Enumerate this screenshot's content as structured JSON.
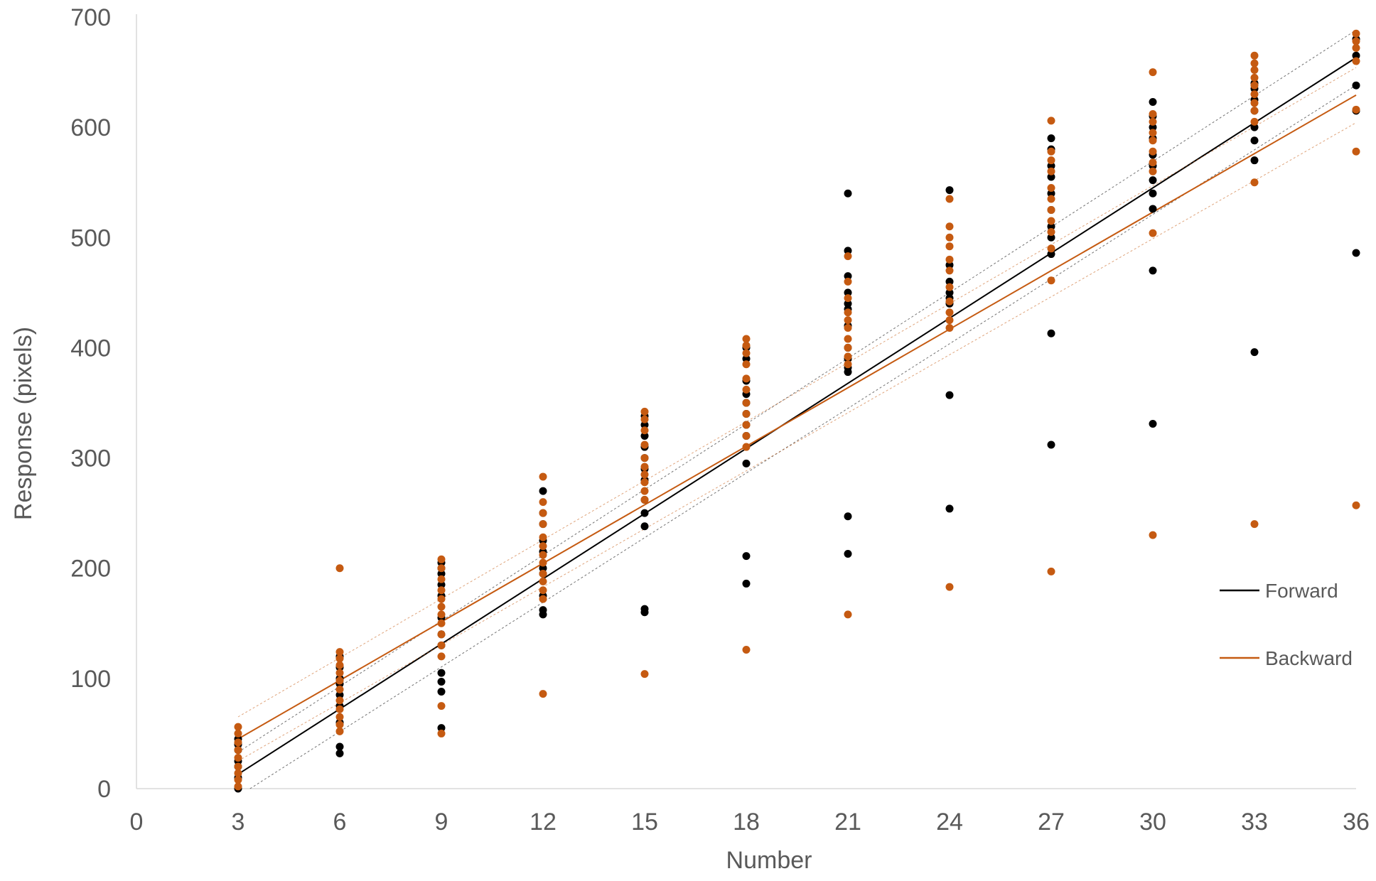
{
  "chart_data": {
    "type": "scatter",
    "title": "",
    "xlabel": "Number",
    "ylabel": "Response (pixels)",
    "xlim": [
      0,
      36
    ],
    "ylim": [
      0,
      700
    ],
    "x_ticks": [
      0,
      3,
      6,
      9,
      12,
      15,
      18,
      21,
      24,
      27,
      30,
      33,
      36
    ],
    "y_ticks": [
      0,
      100,
      200,
      300,
      400,
      500,
      600,
      700
    ],
    "grid": false,
    "legend_position": "right",
    "series": [
      {
        "name": "Forward",
        "color": "#000000",
        "trendline": {
          "slope": 19.7,
          "intercept": -46,
          "ci_band": 20
        },
        "points": [
          [
            3,
            0
          ],
          [
            3,
            10
          ],
          [
            3,
            20
          ],
          [
            3,
            25
          ],
          [
            3,
            35
          ],
          [
            3,
            40
          ],
          [
            3,
            45
          ],
          [
            6,
            32
          ],
          [
            6,
            38
          ],
          [
            6,
            60
          ],
          [
            6,
            75
          ],
          [
            6,
            85
          ],
          [
            6,
            95
          ],
          [
            6,
            100
          ],
          [
            6,
            110
          ],
          [
            6,
            120
          ],
          [
            9,
            55
          ],
          [
            9,
            88
          ],
          [
            9,
            97
          ],
          [
            9,
            105
          ],
          [
            9,
            130
          ],
          [
            9,
            140
          ],
          [
            9,
            155
          ],
          [
            9,
            175
          ],
          [
            9,
            185
          ],
          [
            9,
            195
          ],
          [
            9,
            200
          ],
          [
            9,
            205
          ],
          [
            12,
            158
          ],
          [
            12,
            162
          ],
          [
            12,
            175
          ],
          [
            12,
            195
          ],
          [
            12,
            200
          ],
          [
            12,
            215
          ],
          [
            12,
            225
          ],
          [
            12,
            240
          ],
          [
            12,
            250
          ],
          [
            12,
            270
          ],
          [
            15,
            160
          ],
          [
            15,
            163
          ],
          [
            15,
            238
          ],
          [
            15,
            250
          ],
          [
            15,
            262
          ],
          [
            15,
            280
          ],
          [
            15,
            290
          ],
          [
            15,
            300
          ],
          [
            15,
            310
          ],
          [
            15,
            320
          ],
          [
            15,
            330
          ],
          [
            15,
            338
          ],
          [
            18,
            186
          ],
          [
            18,
            211
          ],
          [
            18,
            295
          ],
          [
            18,
            320
          ],
          [
            18,
            330
          ],
          [
            18,
            340
          ],
          [
            18,
            350
          ],
          [
            18,
            358
          ],
          [
            18,
            370
          ],
          [
            18,
            390
          ],
          [
            18,
            400
          ],
          [
            21,
            213
          ],
          [
            21,
            247
          ],
          [
            21,
            378
          ],
          [
            21,
            382
          ],
          [
            21,
            390
          ],
          [
            21,
            400
          ],
          [
            21,
            420
          ],
          [
            21,
            435
          ],
          [
            21,
            440
          ],
          [
            21,
            450
          ],
          [
            21,
            465
          ],
          [
            21,
            488
          ],
          [
            21,
            540
          ],
          [
            24,
            254
          ],
          [
            24,
            357
          ],
          [
            24,
            440
          ],
          [
            24,
            445
          ],
          [
            24,
            450
          ],
          [
            24,
            460
          ],
          [
            24,
            475
          ],
          [
            24,
            543
          ],
          [
            27,
            312
          ],
          [
            27,
            413
          ],
          [
            27,
            485
          ],
          [
            27,
            500
          ],
          [
            27,
            510
          ],
          [
            27,
            525
          ],
          [
            27,
            540
          ],
          [
            27,
            555
          ],
          [
            27,
            565
          ],
          [
            27,
            580
          ],
          [
            27,
            590
          ],
          [
            30,
            331
          ],
          [
            30,
            470
          ],
          [
            30,
            526
          ],
          [
            30,
            540
          ],
          [
            30,
            552
          ],
          [
            30,
            565
          ],
          [
            30,
            575
          ],
          [
            30,
            590
          ],
          [
            30,
            600
          ],
          [
            30,
            610
          ],
          [
            30,
            623
          ],
          [
            33,
            396
          ],
          [
            33,
            570
          ],
          [
            33,
            588
          ],
          [
            33,
            600
          ],
          [
            33,
            615
          ],
          [
            33,
            625
          ],
          [
            33,
            635
          ],
          [
            33,
            640
          ],
          [
            36,
            486
          ],
          [
            36,
            615
          ],
          [
            36,
            638
          ],
          [
            36,
            665
          ],
          [
            36,
            680
          ]
        ]
      },
      {
        "name": "Backward",
        "color": "#c55a11",
        "trendline": {
          "slope": 17.7,
          "intercept": -8,
          "ci_band": 20
        },
        "points": [
          [
            3,
            2
          ],
          [
            3,
            8
          ],
          [
            3,
            14
          ],
          [
            3,
            20
          ],
          [
            3,
            28
          ],
          [
            3,
            35
          ],
          [
            3,
            42
          ],
          [
            3,
            50
          ],
          [
            3,
            56
          ],
          [
            6,
            52
          ],
          [
            6,
            58
          ],
          [
            6,
            65
          ],
          [
            6,
            72
          ],
          [
            6,
            80
          ],
          [
            6,
            90
          ],
          [
            6,
            98
          ],
          [
            6,
            105
          ],
          [
            6,
            112
          ],
          [
            6,
            118
          ],
          [
            6,
            124
          ],
          [
            6,
            200
          ],
          [
            9,
            50
          ],
          [
            9,
            75
          ],
          [
            9,
            120
          ],
          [
            9,
            130
          ],
          [
            9,
            140
          ],
          [
            9,
            150
          ],
          [
            9,
            158
          ],
          [
            9,
            165
          ],
          [
            9,
            172
          ],
          [
            9,
            180
          ],
          [
            9,
            190
          ],
          [
            9,
            200
          ],
          [
            9,
            208
          ],
          [
            12,
            86
          ],
          [
            12,
            172
          ],
          [
            12,
            180
          ],
          [
            12,
            188
          ],
          [
            12,
            195
          ],
          [
            12,
            205
          ],
          [
            12,
            212
          ],
          [
            12,
            220
          ],
          [
            12,
            228
          ],
          [
            12,
            240
          ],
          [
            12,
            250
          ],
          [
            12,
            260
          ],
          [
            12,
            283
          ],
          [
            15,
            104
          ],
          [
            15,
            262
          ],
          [
            15,
            270
          ],
          [
            15,
            278
          ],
          [
            15,
            285
          ],
          [
            15,
            292
          ],
          [
            15,
            300
          ],
          [
            15,
            312
          ],
          [
            15,
            325
          ],
          [
            15,
            335
          ],
          [
            15,
            342
          ],
          [
            18,
            126
          ],
          [
            18,
            310
          ],
          [
            18,
            320
          ],
          [
            18,
            330
          ],
          [
            18,
            340
          ],
          [
            18,
            350
          ],
          [
            18,
            362
          ],
          [
            18,
            372
          ],
          [
            18,
            385
          ],
          [
            18,
            395
          ],
          [
            18,
            402
          ],
          [
            18,
            408
          ],
          [
            21,
            158
          ],
          [
            21,
            385
          ],
          [
            21,
            392
          ],
          [
            21,
            400
          ],
          [
            21,
            408
          ],
          [
            21,
            418
          ],
          [
            21,
            425
          ],
          [
            21,
            432
          ],
          [
            21,
            445
          ],
          [
            21,
            460
          ],
          [
            21,
            483
          ],
          [
            24,
            183
          ],
          [
            24,
            418
          ],
          [
            24,
            425
          ],
          [
            24,
            432
          ],
          [
            24,
            442
          ],
          [
            24,
            455
          ],
          [
            24,
            470
          ],
          [
            24,
            480
          ],
          [
            24,
            492
          ],
          [
            24,
            500
          ],
          [
            24,
            510
          ],
          [
            24,
            535
          ],
          [
            27,
            197
          ],
          [
            27,
            461
          ],
          [
            27,
            490
          ],
          [
            27,
            505
          ],
          [
            27,
            515
          ],
          [
            27,
            525
          ],
          [
            27,
            535
          ],
          [
            27,
            545
          ],
          [
            27,
            560
          ],
          [
            27,
            570
          ],
          [
            27,
            578
          ],
          [
            27,
            606
          ],
          [
            30,
            230
          ],
          [
            30,
            504
          ],
          [
            30,
            560
          ],
          [
            30,
            568
          ],
          [
            30,
            578
          ],
          [
            30,
            588
          ],
          [
            30,
            595
          ],
          [
            30,
            605
          ],
          [
            30,
            612
          ],
          [
            30,
            650
          ],
          [
            33,
            240
          ],
          [
            33,
            550
          ],
          [
            33,
            605
          ],
          [
            33,
            615
          ],
          [
            33,
            622
          ],
          [
            33,
            630
          ],
          [
            33,
            638
          ],
          [
            33,
            645
          ],
          [
            33,
            652
          ],
          [
            33,
            658
          ],
          [
            33,
            665
          ],
          [
            36,
            257
          ],
          [
            36,
            578
          ],
          [
            36,
            616
          ],
          [
            36,
            660
          ],
          [
            36,
            672
          ],
          [
            36,
            678
          ],
          [
            36,
            685
          ]
        ]
      }
    ]
  }
}
